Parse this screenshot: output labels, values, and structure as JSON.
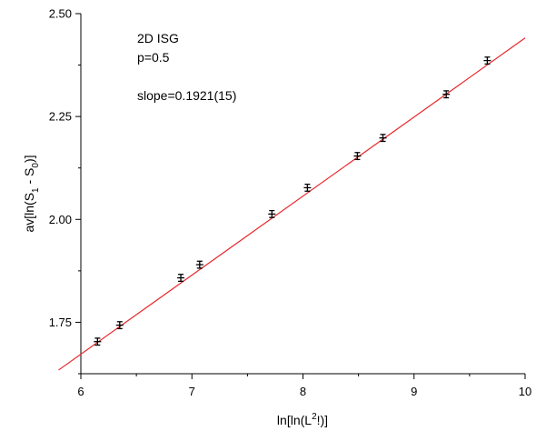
{
  "chart_data": {
    "type": "scatter",
    "title": "",
    "xlabel": {
      "base": "ln[ln(L",
      "sup": "2",
      "tail": "!)]"
    },
    "ylabel": {
      "pre": "av[ln(S",
      "sub1": "1",
      "mid": " - S",
      "sub2": "0",
      "post": ")]"
    },
    "xlim": [
      6,
      10
    ],
    "ylim": [
      1.625,
      2.5
    ],
    "xticks": [
      6,
      7,
      8,
      9,
      10
    ],
    "xtick_labels": [
      "6",
      "7",
      "8",
      "9",
      "10"
    ],
    "yticks": [
      1.75,
      2.0,
      2.25,
      2.5
    ],
    "ytick_labels": [
      "1.75",
      "2.00",
      "2.25",
      "2.50"
    ],
    "grid": false,
    "annotations": [
      "2D ISG",
      "p=0.5",
      "slope=0.1921(15)"
    ],
    "series": [
      {
        "marker": "cross-with-errorbar",
        "color": "#000000",
        "x": [
          6.15,
          6.35,
          6.9,
          7.07,
          7.72,
          8.04,
          8.49,
          8.72,
          9.29,
          9.66
        ],
        "y": [
          1.703,
          1.743,
          1.858,
          1.89,
          2.013,
          2.077,
          2.154,
          2.198,
          2.304,
          2.386
        ],
        "yerr": [
          0.004,
          0.004,
          0.004,
          0.004,
          0.004,
          0.004,
          0.004,
          0.004,
          0.004,
          0.004
        ]
      }
    ],
    "fit_line": {
      "color": "#e8262b",
      "slope": 0.1921,
      "intercept": 0.5198,
      "x_range": [
        5.8,
        10.0
      ]
    }
  }
}
